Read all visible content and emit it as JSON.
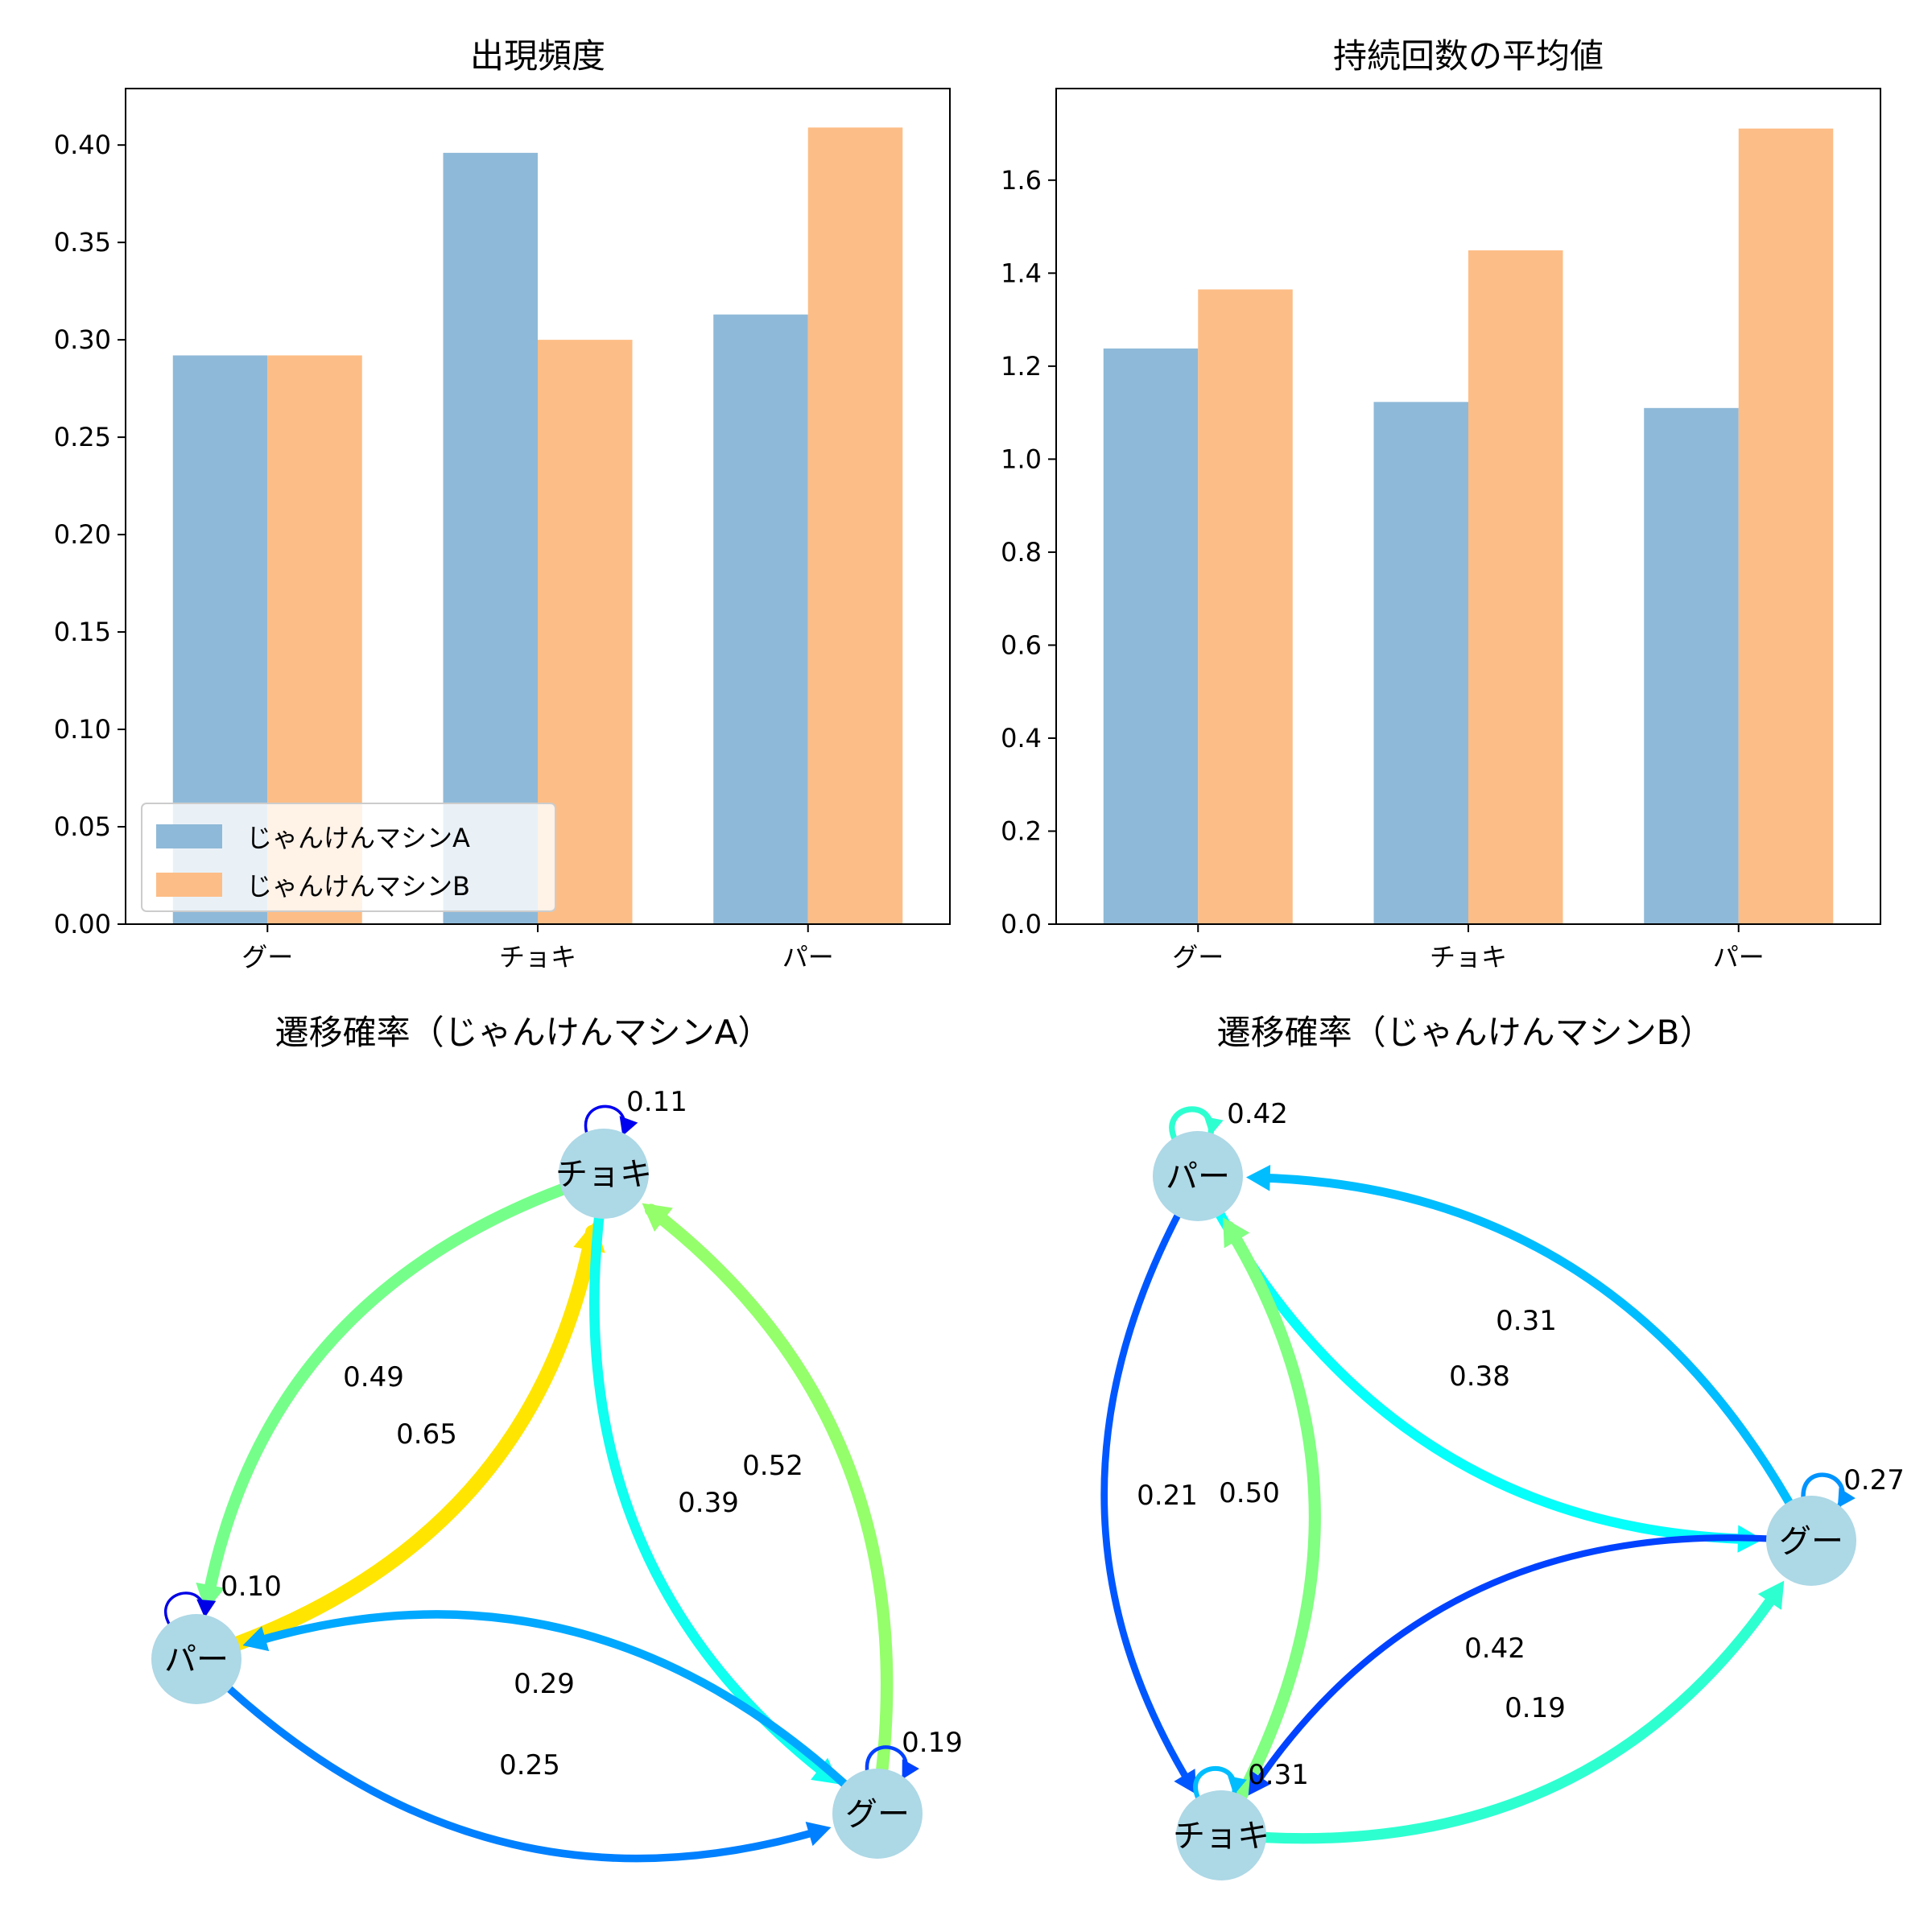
{
  "colors": {
    "series_a": "#8fb9d8",
    "series_b": "#fdbd86",
    "node": "#add8e6"
  },
  "chart_data": [
    {
      "type": "bar",
      "title": "出現頻度",
      "categories": [
        "グー",
        "チョキ",
        "パー"
      ],
      "series": [
        {
          "name": "じゃんけんマシンA",
          "values": [
            0.292,
            0.396,
            0.313
          ]
        },
        {
          "name": "じゃんけんマシンB",
          "values": [
            0.292,
            0.3,
            0.409
          ]
        }
      ],
      "ylim": [
        0,
        0.429
      ],
      "yticks": [
        0.0,
        0.05,
        0.1,
        0.15,
        0.2,
        0.25,
        0.3,
        0.35,
        0.4
      ],
      "ytick_labels": [
        "0.00",
        "0.05",
        "0.10",
        "0.15",
        "0.20",
        "0.25",
        "0.30",
        "0.35",
        "0.40"
      ],
      "legend": "lower-left",
      "grid": false
    },
    {
      "type": "bar",
      "title": "持続回数の平均値",
      "categories": [
        "グー",
        "チョキ",
        "パー"
      ],
      "series": [
        {
          "name": "じゃんけんマシンA",
          "values": [
            1.238,
            1.123,
            1.11
          ]
        },
        {
          "name": "じゃんけんマシンB",
          "values": [
            1.365,
            1.449,
            1.711
          ]
        }
      ],
      "ylim": [
        0,
        1.797
      ],
      "yticks": [
        0.0,
        0.2,
        0.4,
        0.6,
        0.8,
        1.0,
        1.2,
        1.4,
        1.6
      ],
      "ytick_labels": [
        "0.0",
        "0.2",
        "0.4",
        "0.6",
        "0.8",
        "1.0",
        "1.2",
        "1.4",
        "1.6"
      ],
      "legend": "none",
      "grid": false
    },
    {
      "type": "network",
      "title": "遷移確率（じゃんけんマシンA）",
      "nodes": [
        "チョキ",
        "パー",
        "グー"
      ],
      "edges": [
        {
          "from": "チョキ",
          "to": "チョキ",
          "label": "0.11",
          "value": 0.11
        },
        {
          "from": "チョキ",
          "to": "パー",
          "label": "0.49",
          "value": 0.49
        },
        {
          "from": "パー",
          "to": "チョキ",
          "label": "0.65",
          "value": 0.65
        },
        {
          "from": "チョキ",
          "to": "グー",
          "label": "0.39",
          "value": 0.39
        },
        {
          "from": "グー",
          "to": "チョキ",
          "label": "0.52",
          "value": 0.52
        },
        {
          "from": "パー",
          "to": "パー",
          "label": "0.10",
          "value": 0.1
        },
        {
          "from": "グー",
          "to": "パー",
          "label": "0.29",
          "value": 0.29
        },
        {
          "from": "パー",
          "to": "グー",
          "label": "0.25",
          "value": 0.25
        },
        {
          "from": "グー",
          "to": "グー",
          "label": "0.19",
          "value": 0.19
        }
      ]
    },
    {
      "type": "network",
      "title": "遷移確率（じゃんけんマシンB）",
      "nodes": [
        "パー",
        "グー",
        "チョキ"
      ],
      "edges": [
        {
          "from": "パー",
          "to": "パー",
          "label": "0.42",
          "value": 0.42
        },
        {
          "from": "グー",
          "to": "パー",
          "label": "0.31",
          "value": 0.31
        },
        {
          "from": "パー",
          "to": "グー",
          "label": "0.38",
          "value": 0.38
        },
        {
          "from": "パー",
          "to": "チョキ",
          "label": "0.21",
          "value": 0.21
        },
        {
          "from": "チョキ",
          "to": "パー",
          "label": "0.50",
          "value": 0.5
        },
        {
          "from": "グー",
          "to": "グー",
          "label": "0.27",
          "value": 0.27
        },
        {
          "from": "チョキ",
          "to": "グー",
          "label": "0.42",
          "value": 0.42
        },
        {
          "from": "グー",
          "to": "チョキ",
          "label": "0.19",
          "value": 0.19
        },
        {
          "from": "チョキ",
          "to": "チョキ",
          "label": "0.31",
          "value": 0.31
        }
      ]
    }
  ]
}
